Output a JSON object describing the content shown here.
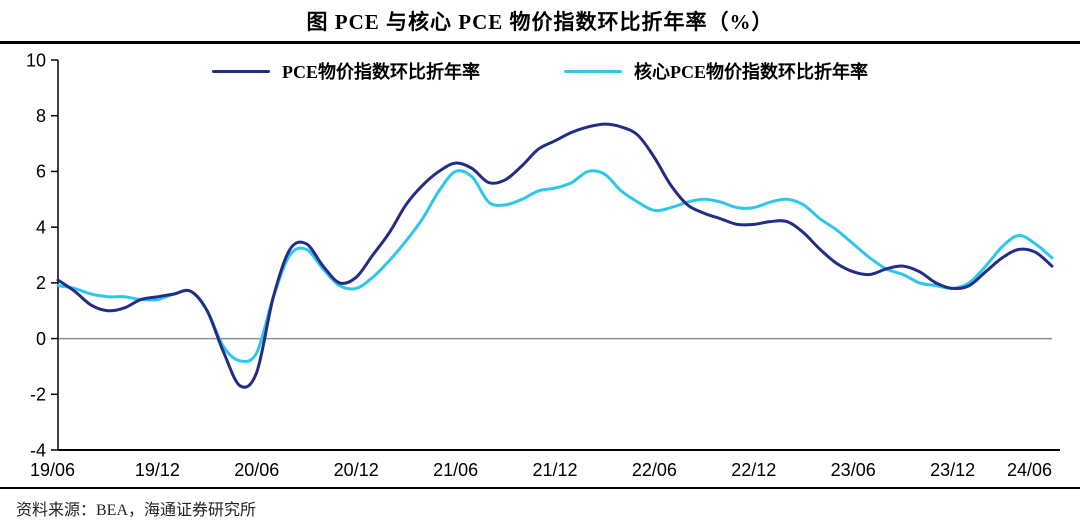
{
  "title": "图 PCE 与核心 PCE 物价指数环比折年率（%）",
  "source": "资料来源：BEA，海通证券研究所",
  "colors": {
    "pce_line": "#232C87",
    "core_pce_line": "#2EC6EC",
    "zero_line": "#8f8f8f",
    "axis": "#000000"
  },
  "chart_data": {
    "type": "line",
    "title": "图 PCE 与核心 PCE 物价指数环比折年率（%）",
    "xlabel": "",
    "ylabel": "",
    "ylim": [
      -4,
      10
    ],
    "y_ticks": [
      10,
      8,
      6,
      4,
      2,
      0,
      -2,
      -4
    ],
    "x_tick_labels": [
      "19/06",
      "19/12",
      "20/06",
      "20/12",
      "21/06",
      "21/12",
      "22/06",
      "22/12",
      "23/06",
      "23/12",
      "24/06"
    ],
    "grid": "zero-line-only",
    "legend_position": "top-center",
    "series": [
      {
        "name": "PCE物价指数环比折年率",
        "color": "#232C87",
        "values": [
          2.1,
          1.7,
          1.2,
          1.0,
          1.1,
          1.4,
          1.5,
          1.6,
          1.7,
          1.0,
          -0.5,
          -1.7,
          -1.2,
          1.5,
          3.2,
          3.4,
          2.6,
          2.0,
          2.2,
          3.0,
          3.8,
          4.8,
          5.5,
          6.0,
          6.3,
          6.1,
          5.6,
          5.7,
          6.2,
          6.8,
          7.1,
          7.4,
          7.6,
          7.7,
          7.6,
          7.3,
          6.5,
          5.5,
          4.8,
          4.5,
          4.3,
          4.1,
          4.1,
          4.2,
          4.2,
          3.8,
          3.2,
          2.7,
          2.4,
          2.3,
          2.5,
          2.6,
          2.4,
          2.0,
          1.8,
          1.9,
          2.4,
          2.9,
          3.2,
          3.1,
          2.6
        ]
      },
      {
        "name": "核心PCE物价指数环比折年率",
        "color": "#2EC6EC",
        "values": [
          1.9,
          1.8,
          1.6,
          1.5,
          1.5,
          1.4,
          1.4,
          1.6,
          1.7,
          1.0,
          -0.3,
          -0.8,
          -0.5,
          1.5,
          3.0,
          3.2,
          2.5,
          1.9,
          1.8,
          2.2,
          2.8,
          3.5,
          4.3,
          5.3,
          6.0,
          5.8,
          4.9,
          4.8,
          5.0,
          5.3,
          5.4,
          5.6,
          6.0,
          5.9,
          5.3,
          4.9,
          4.6,
          4.7,
          4.9,
          5.0,
          4.9,
          4.7,
          4.7,
          4.9,
          5.0,
          4.8,
          4.3,
          3.9,
          3.4,
          2.9,
          2.5,
          2.3,
          2.0,
          1.9,
          1.8,
          2.0,
          2.6,
          3.3,
          3.7,
          3.4,
          2.9
        ]
      }
    ]
  }
}
